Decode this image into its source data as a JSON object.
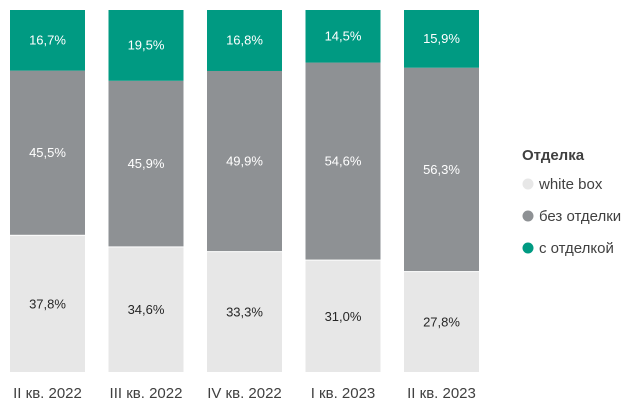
{
  "chart_data": {
    "type": "bar",
    "stacked": true,
    "normalized": true,
    "categories": [
      "II кв. 2022",
      "III кв. 2022",
      "IV кв. 2022",
      "I кв. 2023",
      "II кв. 2023"
    ],
    "series": [
      {
        "name": "white box",
        "color": "#e7e7e7",
        "text_color": "#262626",
        "values": [
          37.8,
          34.6,
          33.3,
          31.0,
          27.8
        ],
        "labels": [
          "37,8%",
          "34,6%",
          "33,3%",
          "31,0%",
          "27,8%"
        ]
      },
      {
        "name": "без отделки",
        "color": "#8e9194",
        "text_color": "#ffffff",
        "values": [
          45.5,
          45.9,
          49.9,
          54.6,
          56.3
        ],
        "labels": [
          "45,5%",
          "45,9%",
          "49,9%",
          "54,6%",
          "56,3%"
        ]
      },
      {
        "name": "с отделкой",
        "color": "#009a82",
        "text_color": "#ffffff",
        "values": [
          16.7,
          19.5,
          16.8,
          14.5,
          15.9
        ],
        "labels": [
          "16,7%",
          "19,5%",
          "16,8%",
          "14,5%",
          "15,9%"
        ]
      }
    ],
    "legend": {
      "title": "Отделка",
      "position": "right"
    },
    "ylim": [
      0,
      100
    ],
    "grid": false,
    "xlabel": "",
    "ylabel": ""
  }
}
